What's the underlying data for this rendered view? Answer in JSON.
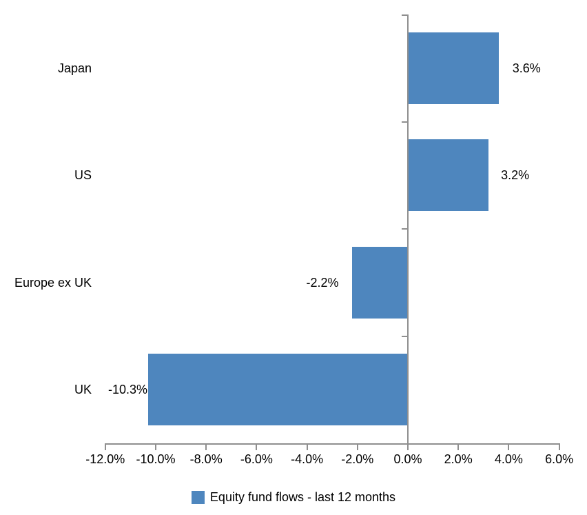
{
  "chart_data": {
    "type": "bar",
    "orientation": "horizontal",
    "title": "",
    "categories": [
      "Japan",
      "US",
      "Europe ex UK",
      "UK"
    ],
    "values": [
      3.6,
      3.2,
      -2.2,
      -10.3
    ],
    "data_labels": [
      "3.6%",
      "3.2%",
      "-2.2%",
      "-10.3%"
    ],
    "legend": "Equity fund flows - last 12 months",
    "legend_position": "bottom",
    "xlim": [
      -12,
      6
    ],
    "x_tick_values": [
      -12,
      -10,
      -8,
      -6,
      -4,
      -2,
      0,
      2,
      4,
      6
    ],
    "x_tick_labels": [
      "-12.0%",
      "-10.0%",
      "-8.0%",
      "-6.0%",
      "-4.0%",
      "-2.0%",
      "0.0%",
      "2.0%",
      "4.0%",
      "6.0%"
    ],
    "grid": false,
    "bar_color": "#4e86be",
    "axis_color": "#8f8f8f",
    "text_color": "#000000",
    "background_color": "#ffffff"
  }
}
